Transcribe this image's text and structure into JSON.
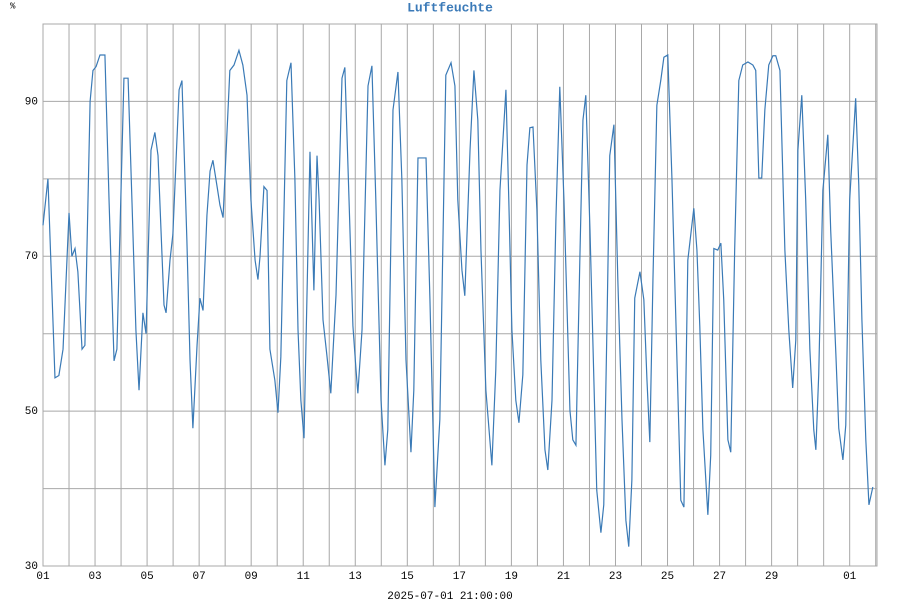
{
  "chart_data": {
    "type": "line",
    "title": "Luftfeuchte",
    "ylabel": "%",
    "xlabel": "2025-07-01 21:00:00",
    "color": "#3a7ab6",
    "grid": true,
    "x": [
      0,
      0.19,
      0.46,
      0.61,
      0.77,
      1.0,
      1.11,
      1.23,
      1.34,
      1.5,
      1.61,
      1.81,
      1.92,
      2.04,
      2.19,
      2.38,
      2.54,
      2.73,
      2.84,
      3.11,
      3.27,
      3.42,
      3.57,
      3.69,
      3.84,
      3.96,
      4.15,
      4.3,
      4.42,
      4.65,
      4.73,
      4.88,
      4.99,
      5.23,
      5.34,
      5.53,
      5.65,
      5.76,
      5.92,
      6.03,
      6.15,
      6.3,
      6.42,
      6.53,
      6.69,
      6.8,
      6.92,
      7.18,
      7.34,
      7.53,
      7.68,
      7.84,
      7.99,
      8.15,
      8.26,
      8.34,
      8.49,
      8.61,
      8.72,
      8.91,
      9.03,
      9.14,
      9.37,
      9.53,
      9.68,
      9.8,
      9.91,
      10.03,
      10.26,
      10.41,
      10.53,
      10.61,
      10.76,
      10.91,
      11.06,
      11.26,
      11.49,
      11.6,
      11.76,
      11.91,
      12.03,
      12.1,
      12.26,
      12.49,
      12.64,
      12.79,
      12.99,
      13.14,
      13.25,
      13.45,
      13.64,
      13.79,
      13.95,
      14.14,
      14.25,
      14.41,
      14.72,
      14.87,
      15.06,
      15.25,
      15.48,
      15.68,
      15.83,
      15.94,
      16.1,
      16.21,
      16.41,
      16.56,
      16.71,
      16.83,
      17.02,
      17.25,
      17.4,
      17.56,
      17.79,
      17.9,
      18.02,
      18.17,
      18.29,
      18.44,
      18.6,
      18.71,
      18.83,
      18.98,
      19.13,
      19.29,
      19.4,
      19.56,
      19.71,
      19.86,
      20.02,
      20.25,
      20.36,
      20.48,
      20.63,
      20.75,
      20.86,
      21.02,
      21.28,
      21.44,
      21.55,
      21.67,
      21.78,
      21.94,
      22.09,
      22.25,
      22.4,
      22.51,
      22.63,
      22.74,
      22.94,
      23.09,
      23.21,
      23.32,
      23.44,
      23.59,
      23.74,
      23.86,
      24.01,
      24.17,
      24.32,
      24.51,
      24.63,
      24.78,
      25.01,
      25.13,
      25.24,
      25.36,
      25.55,
      25.66,
      25.78,
      25.93,
      26.05,
      26.16,
      26.32,
      26.43,
      26.58,
      26.74,
      26.89,
      27.09,
      27.28,
      27.39,
      27.51,
      27.62,
      27.74,
      27.89,
      28.05,
      28.16,
      28.32,
      28.51,
      28.66,
      28.81,
      28.93,
      29.01,
      29.16,
      29.31,
      29.47,
      29.62,
      29.7,
      29.81,
      29.97,
      30.16,
      30.27,
      30.47,
      30.58,
      30.74,
      30.85,
      31.0,
      31.23,
      31.35,
      31.47,
      31.62,
      31.74,
      31.89
    ],
    "values": [
      74,
      80,
      54.3,
      54.6,
      58,
      75.6,
      70,
      71,
      68,
      58,
      58.5,
      90,
      94,
      94.5,
      96,
      96,
      77,
      56.5,
      58,
      93,
      93,
      77,
      60.5,
      52.7,
      62.7,
      60,
      83.7,
      86,
      83,
      63.7,
      62.7,
      69.5,
      72.8,
      91.5,
      92.7,
      72,
      56.6,
      47.8,
      58.5,
      64.6,
      63,
      75.3,
      81,
      82.4,
      79,
      76.6,
      75,
      94,
      94.7,
      96.6,
      94.7,
      90.8,
      77.3,
      69.5,
      67,
      70,
      79,
      78.5,
      58,
      54,
      49.8,
      57,
      92.7,
      95,
      80,
      60.5,
      51.4,
      46.5,
      83.5,
      65.6,
      83,
      77.3,
      61.8,
      57.2,
      52.3,
      65,
      93,
      94.4,
      77.3,
      61,
      55.3,
      52.3,
      60.5,
      92,
      94.6,
      77.3,
      51.4,
      43,
      47.6,
      88.9,
      93.8,
      80,
      56.6,
      44.7,
      52.7,
      82.7,
      82.7,
      64.4,
      37.6,
      48.9,
      93.4,
      95,
      92,
      77.3,
      68.2,
      64.9,
      83.7,
      94,
      87.6,
      70.8,
      52.7,
      43,
      55.3,
      78.5,
      91.5,
      77.3,
      60.5,
      51.4,
      48.5,
      54.7,
      81.8,
      86.6,
      86.7,
      76,
      56.6,
      45,
      42.4,
      51.4,
      74.7,
      91.9,
      77.3,
      50.1,
      46.3,
      45.6,
      69.5,
      87.6,
      90.8,
      73.4,
      39.8,
      34.3,
      37.9,
      60.5,
      83,
      87,
      67,
      48.9,
      35.9,
      32.5,
      41.1,
      64.6,
      68,
      64.4,
      54,
      46,
      67,
      89.5,
      92.7,
      95.7,
      96,
      80,
      61.8,
      38.5,
      37.6,
      69.5,
      76.2,
      70.8,
      61,
      47.6,
      36.6,
      44.3,
      71,
      70.8,
      71.7,
      64.4,
      46.3,
      44.7,
      70.8,
      92.7,
      94.7,
      95.1,
      94.7,
      94,
      80.1,
      80.1,
      88.9,
      94.7,
      95.9,
      95.9,
      94,
      70.8,
      60.5,
      53,
      59.2,
      83.7,
      90.8,
      77.3,
      58,
      47.6,
      45,
      54.7,
      78.5,
      85.7,
      73.4,
      57.3,
      47.8,
      43.7,
      48.2,
      77.3,
      90.4,
      79.2,
      61.8,
      46.3,
      37.9,
      40.2
    ],
    "xlim": [
      0,
      32.05
    ],
    "xticks": [
      {
        "value": 0,
        "label": "01"
      },
      {
        "value": 2,
        "label": "03"
      },
      {
        "value": 4,
        "label": "05"
      },
      {
        "value": 6,
        "label": "07"
      },
      {
        "value": 8,
        "label": "09"
      },
      {
        "value": 10,
        "label": "11"
      },
      {
        "value": 12,
        "label": "13"
      },
      {
        "value": 14,
        "label": "15"
      },
      {
        "value": 16,
        "label": "17"
      },
      {
        "value": 18,
        "label": "19"
      },
      {
        "value": 20,
        "label": "21"
      },
      {
        "value": 22,
        "label": "23"
      },
      {
        "value": 24,
        "label": "25"
      },
      {
        "value": 26,
        "label": "27"
      },
      {
        "value": 28,
        "label": "29"
      },
      {
        "value": 31,
        "label": "01"
      }
    ],
    "xminorticks": [
      1,
      3,
      5,
      7,
      9,
      11,
      13,
      15,
      17,
      19,
      21,
      23,
      25,
      27,
      29,
      30,
      32
    ],
    "ylim": [
      30,
      100
    ],
    "yticks": [
      30,
      50,
      70,
      90
    ],
    "yminorticks": [
      40,
      60,
      80,
      100
    ]
  }
}
